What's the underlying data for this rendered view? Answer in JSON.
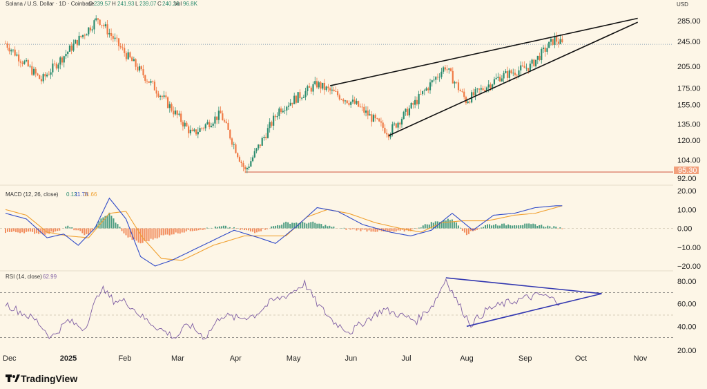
{
  "header": {
    "pair": "Solana / U.S. Dollar · 1D · Coinbase",
    "o_label": "O",
    "o_value": "239.57",
    "h_label": "H",
    "h_value": "241.93",
    "l_label": "L",
    "l_value": "239.07",
    "c_label": "C",
    "c_value": "240.26",
    "vol_label": "Vol",
    "vol_value": "96.8K",
    "currency": "USD"
  },
  "brand": {
    "name": "TradingView"
  },
  "colors": {
    "background": "#fdf6e7",
    "up": "#2b8c6f",
    "down": "#f07a45",
    "macd_line": "#2f4ac8",
    "signal_line": "#f0a030",
    "rsi_line": "#7d5ca3",
    "trendline": "#111111",
    "rsi_trendline": "#3237b0",
    "support": "#d0543c"
  },
  "chart_data": [
    {
      "type": "candlestick",
      "title": "Solana / U.S. Dollar · 1D · Coinbase",
      "x_axis_labels": [
        "Dec",
        "2025",
        "Feb",
        "Mar",
        "Apr",
        "May",
        "Jun",
        "Jul",
        "Aug",
        "Sep",
        "Oct",
        "Nov"
      ],
      "y_axis_ticks": [
        92.0,
        104.0,
        120.0,
        135.0,
        155.0,
        175.0,
        205.0,
        245.0,
        285.0
      ],
      "scale": "log",
      "last_price": 240.26,
      "support_level": {
        "value": 95.3,
        "label": "95.30"
      },
      "key_points": [
        {
          "x": "2024-12-01",
          "y": 242
        },
        {
          "x": "2024-12-20",
          "y": 185
        },
        {
          "x": "2025-01-19",
          "y": 290
        },
        {
          "x": "2025-02-01",
          "y": 230
        },
        {
          "x": "2025-02-20",
          "y": 170
        },
        {
          "x": "2025-03-10",
          "y": 125
        },
        {
          "x": "2025-03-25",
          "y": 145
        },
        {
          "x": "2025-04-07",
          "y": 96
        },
        {
          "x": "2025-04-25",
          "y": 150
        },
        {
          "x": "2025-05-15",
          "y": 180
        },
        {
          "x": "2025-06-05",
          "y": 155
        },
        {
          "x": "2025-06-22",
          "y": 127
        },
        {
          "x": "2025-07-05",
          "y": 155
        },
        {
          "x": "2025-07-22",
          "y": 205
        },
        {
          "x": "2025-08-02",
          "y": 160
        },
        {
          "x": "2025-08-20",
          "y": 190
        },
        {
          "x": "2025-09-05",
          "y": 205
        },
        {
          "x": "2025-09-18",
          "y": 250
        },
        {
          "x": "2025-09-22",
          "y": 240
        }
      ],
      "trendlines": [
        {
          "name": "wedge-upper",
          "from": {
            "x": "2025-05-22",
            "y": 178
          },
          "to": {
            "x": "2025-11-01",
            "y": 290
          }
        },
        {
          "name": "wedge-lower",
          "from": {
            "x": "2025-06-22",
            "y": 124
          },
          "to": {
            "x": "2025-11-01",
            "y": 282
          }
        }
      ]
    },
    {
      "type": "line",
      "title": "MACD (12, 26, close)",
      "legend_values": [
        "0.12",
        "11.78",
        "11.66"
      ],
      "y_axis_ticks": [
        -20.0,
        -10.0,
        0.0,
        10.0,
        20.0
      ],
      "y_axis_labels": [
        "−20.00",
        "−10.00",
        "0.00",
        "10.00",
        "20.00"
      ],
      "ylim": [
        -22,
        22
      ],
      "series": [
        {
          "name": "MACD",
          "points": [
            [
              0,
              8
            ],
            [
              10,
              5
            ],
            [
              20,
              -5
            ],
            [
              28,
              -3
            ],
            [
              35,
              -9
            ],
            [
              43,
              0
            ],
            [
              50,
              16
            ],
            [
              58,
              5
            ],
            [
              65,
              -15
            ],
            [
              72,
              -20
            ],
            [
              80,
              -17
            ],
            [
              95,
              -9
            ],
            [
              110,
              -1
            ],
            [
              122,
              -5
            ],
            [
              130,
              -8
            ],
            [
              140,
              1
            ],
            [
              150,
              11
            ],
            [
              160,
              9
            ],
            [
              172,
              2
            ],
            [
              185,
              -2
            ],
            [
              195,
              -4
            ],
            [
              205,
              -1
            ],
            [
              215,
              8
            ],
            [
              225,
              -1
            ],
            [
              235,
              7
            ],
            [
              245,
              8
            ],
            [
              255,
              11
            ],
            [
              265,
              12
            ],
            [
              268,
              12
            ]
          ]
        },
        {
          "name": "Signal",
          "points": [
            [
              0,
              10
            ],
            [
              10,
              7
            ],
            [
              20,
              -2
            ],
            [
              30,
              -4
            ],
            [
              40,
              -5
            ],
            [
              50,
              8
            ],
            [
              58,
              9
            ],
            [
              66,
              -5
            ],
            [
              75,
              -16
            ],
            [
              85,
              -17
            ],
            [
              100,
              -9
            ],
            [
              115,
              -4
            ],
            [
              125,
              -4
            ],
            [
              135,
              -4
            ],
            [
              145,
              6
            ],
            [
              155,
              10
            ],
            [
              165,
              8
            ],
            [
              178,
              3
            ],
            [
              190,
              0
            ],
            [
              200,
              -2
            ],
            [
              210,
              3
            ],
            [
              220,
              4
            ],
            [
              232,
              4
            ],
            [
              245,
              7
            ],
            [
              255,
              8
            ],
            [
              268,
              12
            ]
          ]
        },
        {
          "name": "Histogram",
          "points": [
            [
              0,
              -2
            ],
            [
              10,
              -2
            ],
            [
              20,
              -3
            ],
            [
              30,
              1
            ],
            [
              40,
              -4
            ],
            [
              45,
              4
            ],
            [
              50,
              8
            ],
            [
              58,
              -4
            ],
            [
              65,
              -8
            ],
            [
              75,
              -4
            ],
            [
              90,
              -1
            ],
            [
              105,
              1
            ],
            [
              120,
              -2
            ],
            [
              135,
              3
            ],
            [
              148,
              3
            ],
            [
              160,
              0
            ],
            [
              172,
              -1
            ],
            [
              185,
              -2
            ],
            [
              195,
              -1
            ],
            [
              205,
              3
            ],
            [
              215,
              5
            ],
            [
              222,
              -3
            ],
            [
              232,
              2
            ],
            [
              245,
              2
            ],
            [
              255,
              2
            ],
            [
              268,
              0
            ]
          ]
        }
      ]
    },
    {
      "type": "line",
      "title": "RSI (14, close)",
      "legend_values": [
        "62.99"
      ],
      "y_axis_ticks": [
        20.0,
        40.0,
        60.0,
        80.0
      ],
      "y_axis_labels": [
        "20.00",
        "40.00",
        "60.00",
        "80.00"
      ],
      "ylim": [
        20,
        85
      ],
      "bands": [
        70,
        50,
        30
      ],
      "series": [
        {
          "name": "RSI",
          "points": [
            [
              0,
              60
            ],
            [
              8,
              52
            ],
            [
              15,
              45
            ],
            [
              22,
              30
            ],
            [
              30,
              45
            ],
            [
              38,
              38
            ],
            [
              46,
              74
            ],
            [
              52,
              63
            ],
            [
              58,
              62
            ],
            [
              66,
              48
            ],
            [
              74,
              38
            ],
            [
              82,
              30
            ],
            [
              88,
              42
            ],
            [
              96,
              30
            ],
            [
              104,
              50
            ],
            [
              112,
              47
            ],
            [
              120,
              50
            ],
            [
              128,
              62
            ],
            [
              136,
              68
            ],
            [
              144,
              78
            ],
            [
              150,
              60
            ],
            [
              158,
              44
            ],
            [
              166,
              35
            ],
            [
              174,
              46
            ],
            [
              182,
              55
            ],
            [
              190,
              50
            ],
            [
              198,
              45
            ],
            [
              206,
              60
            ],
            [
              212,
              82
            ],
            [
              218,
              60
            ],
            [
              224,
              42
            ],
            [
              232,
              55
            ],
            [
              240,
              60
            ],
            [
              250,
              65
            ],
            [
              258,
              68
            ],
            [
              266,
              62
            ],
            [
              268,
              63
            ]
          ]
        }
      ],
      "trendlines": [
        {
          "name": "rsi-upper",
          "from": {
            "x": 212,
            "y": 83
          },
          "to": {
            "x": 287,
            "y": 69
          }
        },
        {
          "name": "rsi-lower",
          "from": {
            "x": 222,
            "y": 40
          },
          "to": {
            "x": 287,
            "y": 69
          }
        }
      ]
    }
  ]
}
